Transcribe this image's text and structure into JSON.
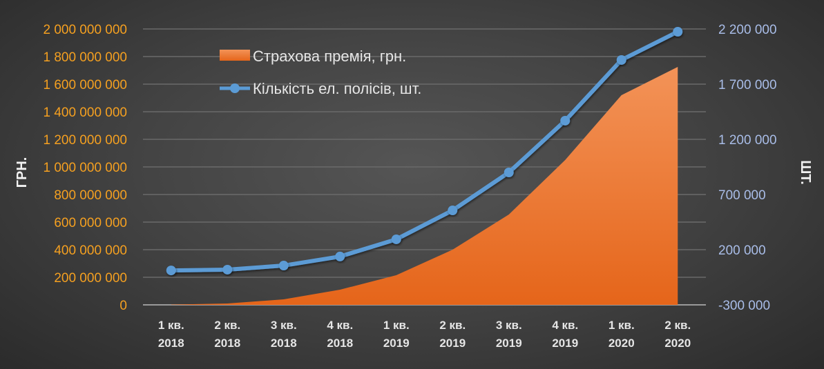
{
  "chart_data": {
    "type": "area+line",
    "categories": [
      [
        "1 кв.",
        "2018"
      ],
      [
        "2 кв.",
        "2018"
      ],
      [
        "3 кв.",
        "2018"
      ],
      [
        "4 кв.",
        "2018"
      ],
      [
        "1 кв.",
        "2019"
      ],
      [
        "2 кв.",
        "2019"
      ],
      [
        "3 кв.",
        "2019"
      ],
      [
        "4 кв.",
        "2019"
      ],
      [
        "1 кв.",
        "2020"
      ],
      [
        "2 кв.",
        "2020"
      ]
    ],
    "series": [
      {
        "name": "Страхова премія, грн.",
        "type": "area",
        "axis": "left",
        "color": "#f07a2a",
        "values": [
          2000000,
          10000000,
          40000000,
          110000000,
          215000000,
          400000000,
          655000000,
          1050000000,
          1520000000,
          1725000000
        ]
      },
      {
        "name": "Кількість ел. полісів, шт.",
        "type": "line",
        "axis": "right",
        "color": "#5b9bd5",
        "values": [
          12000,
          19000,
          56000,
          138000,
          294000,
          556000,
          900000,
          1369000,
          1919000,
          2175000
        ]
      }
    ],
    "y_left": {
      "label": "ГРН.",
      "range": [
        0,
        2000000000
      ],
      "ticks": [
        "0",
        "200 000 000",
        "400 000 000",
        "600 000 000",
        "800 000 000",
        "1 000 000 000",
        "1 200 000 000",
        "1 400 000 000",
        "1 600 000 000",
        "1 800 000 000",
        "2 000 000 000"
      ],
      "color": "#f5a020"
    },
    "y_right": {
      "label": "ШТ.",
      "range": [
        -300000,
        2200000
      ],
      "ticks": [
        "-300 000",
        "200 000",
        "700 000",
        "1 200 000",
        "1 700 000",
        "2 200 000"
      ],
      "color": "#a9bde8"
    },
    "grid": true,
    "legend": "top-left inside"
  }
}
